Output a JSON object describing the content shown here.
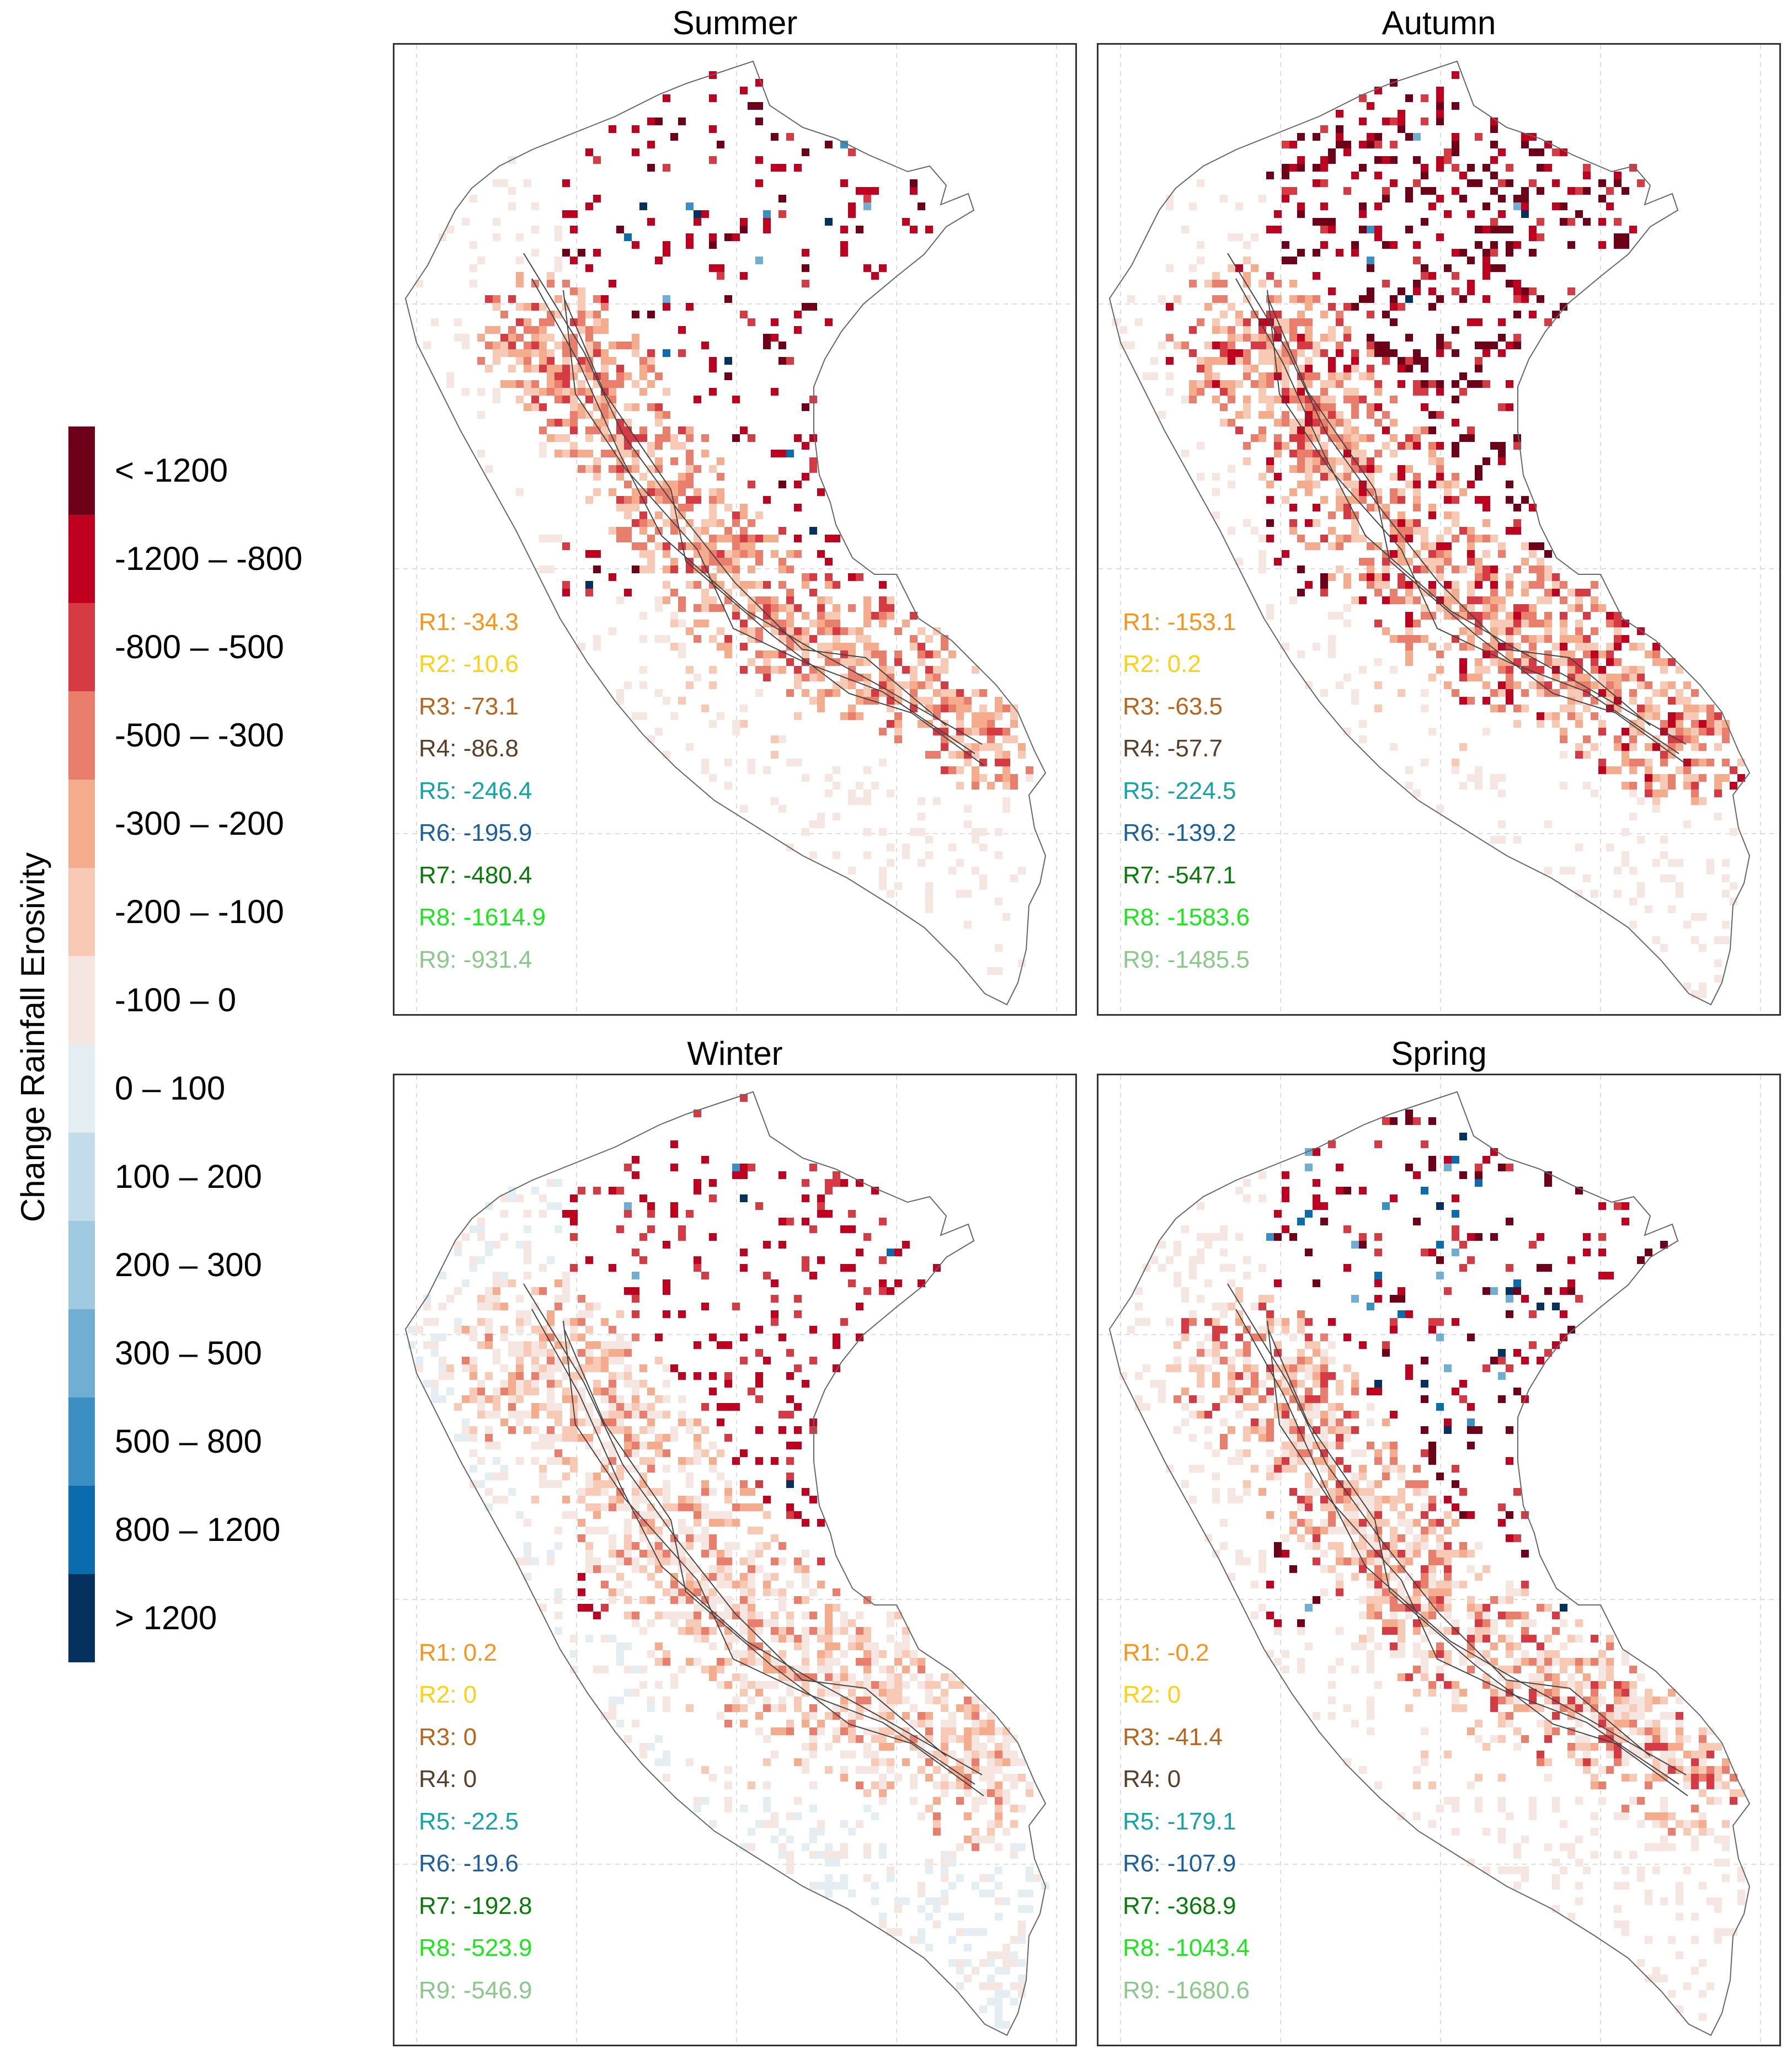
{
  "legend": {
    "title": "Change Rainfall Erosivity",
    "classes": [
      {
        "label": "< -1200",
        "color": "#6d0018"
      },
      {
        "label": "-1200 – -800",
        "color": "#c0001f"
      },
      {
        "label": "-800 – -500",
        "color": "#d63a43"
      },
      {
        "label": "-500 – -300",
        "color": "#ea7e6c"
      },
      {
        "label": "-300 – -200",
        "color": "#f4ac8c"
      },
      {
        "label": "-200 – -100",
        "color": "#f8cab5"
      },
      {
        "label": "-100 – 0",
        "color": "#f6e6e2"
      },
      {
        "label": "0 – 100",
        "color": "#e3edf2"
      },
      {
        "label": "100 – 200",
        "color": "#c3dcec"
      },
      {
        "label": "200 – 300",
        "color": "#a0c9e2"
      },
      {
        "label": "300 – 500",
        "color": "#70aed4"
      },
      {
        "label": "500 – 800",
        "color": "#3b8fc2"
      },
      {
        "label": "800 – 1200",
        "color": "#0a6cad"
      },
      {
        "label": "> 1200",
        "color": "#06305e"
      }
    ]
  },
  "region_colors": [
    "#f7941d",
    "#fcd116",
    "#b5651d",
    "#5a3f28",
    "#17a2a8",
    "#1f5f99",
    "#0a7a0a",
    "#1ee61e",
    "#8cc88c"
  ],
  "panels": [
    {
      "title": "Summer",
      "stats": [
        {
          "region": "R1:",
          "value": "-34.3"
        },
        {
          "region": "R2:",
          "value": "-10.6"
        },
        {
          "region": "R3:",
          "value": "-73.1"
        },
        {
          "region": "R4:",
          "value": "-86.8"
        },
        {
          "region": "R5:",
          "value": "-246.4"
        },
        {
          "region": "R6:",
          "value": "-195.9"
        },
        {
          "region": "R7:",
          "value": "-480.4"
        },
        {
          "region": "R8:",
          "value": "-1614.9"
        },
        {
          "region": "R9:",
          "value": "-931.4"
        }
      ]
    },
    {
      "title": "Autumn",
      "stats": [
        {
          "region": "R1:",
          "value": "-153.1"
        },
        {
          "region": "R2:",
          "value": "0.2"
        },
        {
          "region": "R3:",
          "value": "-63.5"
        },
        {
          "region": "R4:",
          "value": "-57.7"
        },
        {
          "region": "R5:",
          "value": "-224.5"
        },
        {
          "region": "R6:",
          "value": "-139.2"
        },
        {
          "region": "R7:",
          "value": "-547.1"
        },
        {
          "region": "R8:",
          "value": "-1583.6"
        },
        {
          "region": "R9:",
          "value": "-1485.5"
        }
      ]
    },
    {
      "title": "Winter",
      "stats": [
        {
          "region": "R1:",
          "value": "0.2"
        },
        {
          "region": "R2:",
          "value": "0"
        },
        {
          "region": "R3:",
          "value": "0"
        },
        {
          "region": "R4:",
          "value": "0"
        },
        {
          "region": "R5:",
          "value": "-22.5"
        },
        {
          "region": "R6:",
          "value": "-19.6"
        },
        {
          "region": "R7:",
          "value": "-192.8"
        },
        {
          "region": "R8:",
          "value": "-523.9"
        },
        {
          "region": "R9:",
          "value": "-546.9"
        }
      ]
    },
    {
      "title": "Spring",
      "stats": [
        {
          "region": "R1:",
          "value": "-0.2"
        },
        {
          "region": "R2:",
          "value": "0"
        },
        {
          "region": "R3:",
          "value": "-41.4"
        },
        {
          "region": "R4:",
          "value": "0"
        },
        {
          "region": "R5:",
          "value": "-179.1"
        },
        {
          "region": "R6:",
          "value": "-107.9"
        },
        {
          "region": "R7:",
          "value": "-368.9"
        },
        {
          "region": "R8:",
          "value": "-1043.4"
        },
        {
          "region": "R9:",
          "value": "-1680.6"
        }
      ]
    }
  ]
}
